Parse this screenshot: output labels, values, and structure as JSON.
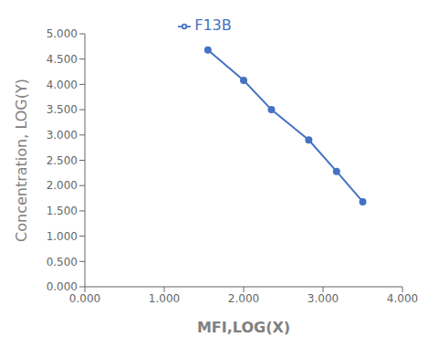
{
  "chart_data": {
    "type": "line",
    "x": [
      1.55,
      2.0,
      2.35,
      2.82,
      3.17,
      3.5
    ],
    "series": [
      {
        "name": "F13B",
        "color": "#4472C4",
        "marker": "circle",
        "values": [
          4.68,
          4.08,
          3.5,
          2.9,
          2.28,
          1.68
        ]
      }
    ],
    "xlabel": "MFI,LOG(X)",
    "ylabel": "Concentration, LOG(Y)",
    "xlim": [
      0.0,
      4.0
    ],
    "ylim": [
      0.0,
      5.0
    ],
    "xticks": [
      {
        "value": 0,
        "label": "0.000"
      },
      {
        "value": 1,
        "label": "1.000"
      },
      {
        "value": 2,
        "label": "2.000"
      },
      {
        "value": 3,
        "label": "3.000"
      },
      {
        "value": 4,
        "label": "4.000"
      }
    ],
    "yticks": [
      {
        "value": 0,
        "label": "0.000"
      },
      {
        "value": 0.5,
        "label": "0.500"
      },
      {
        "value": 1,
        "label": "1.000"
      },
      {
        "value": 1.5,
        "label": "1.500"
      },
      {
        "value": 2,
        "label": "2.000"
      },
      {
        "value": 2.5,
        "label": "2.500"
      },
      {
        "value": 3,
        "label": "3.000"
      },
      {
        "value": 3.5,
        "label": "3.500"
      },
      {
        "value": 4,
        "label": "4.000"
      },
      {
        "value": 4.5,
        "label": "4.500"
      },
      {
        "value": 5,
        "label": "5.000"
      }
    ],
    "legend": "top",
    "grid": false
  }
}
